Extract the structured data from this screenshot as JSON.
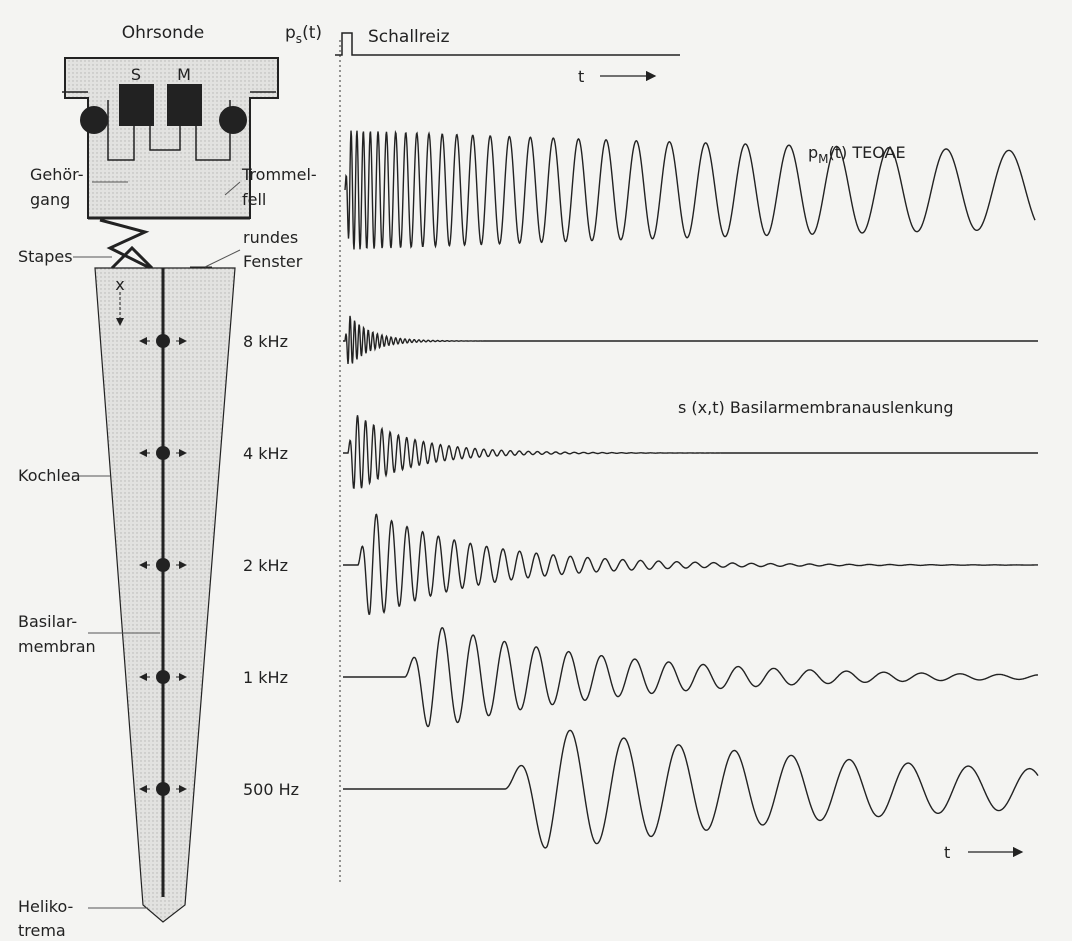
{
  "probe": {
    "title": "Ohrsonde",
    "speaker": "S",
    "microphone": "M"
  },
  "ear_labels": {
    "canal": [
      "Gehör-",
      "gang"
    ],
    "eardrum": [
      "Trommel-",
      "fell"
    ],
    "round_window": [
      "rundes",
      "Fenster"
    ],
    "stapes": "Stapes"
  },
  "cochlea_labels": {
    "x": "x",
    "cochlea": "Kochlea",
    "membrane": [
      "Basilar-",
      "membran"
    ],
    "helicotrema": [
      "Heliko-",
      "trema"
    ]
  },
  "stimulus": {
    "symbol": "p",
    "sub": "s",
    "arg": "(t)",
    "label": "Schallreiz",
    "time": "t"
  },
  "emission": {
    "symbol": "p",
    "sub": "M",
    "arg": "(t) TEOAE"
  },
  "frequencies": [
    "8 kHz",
    "4 kHz",
    "2 kHz",
    "1 kHz",
    "500 Hz"
  ],
  "displacement": "s (x,t) Basilarmembranauslenkung",
  "time_axis": "t"
}
